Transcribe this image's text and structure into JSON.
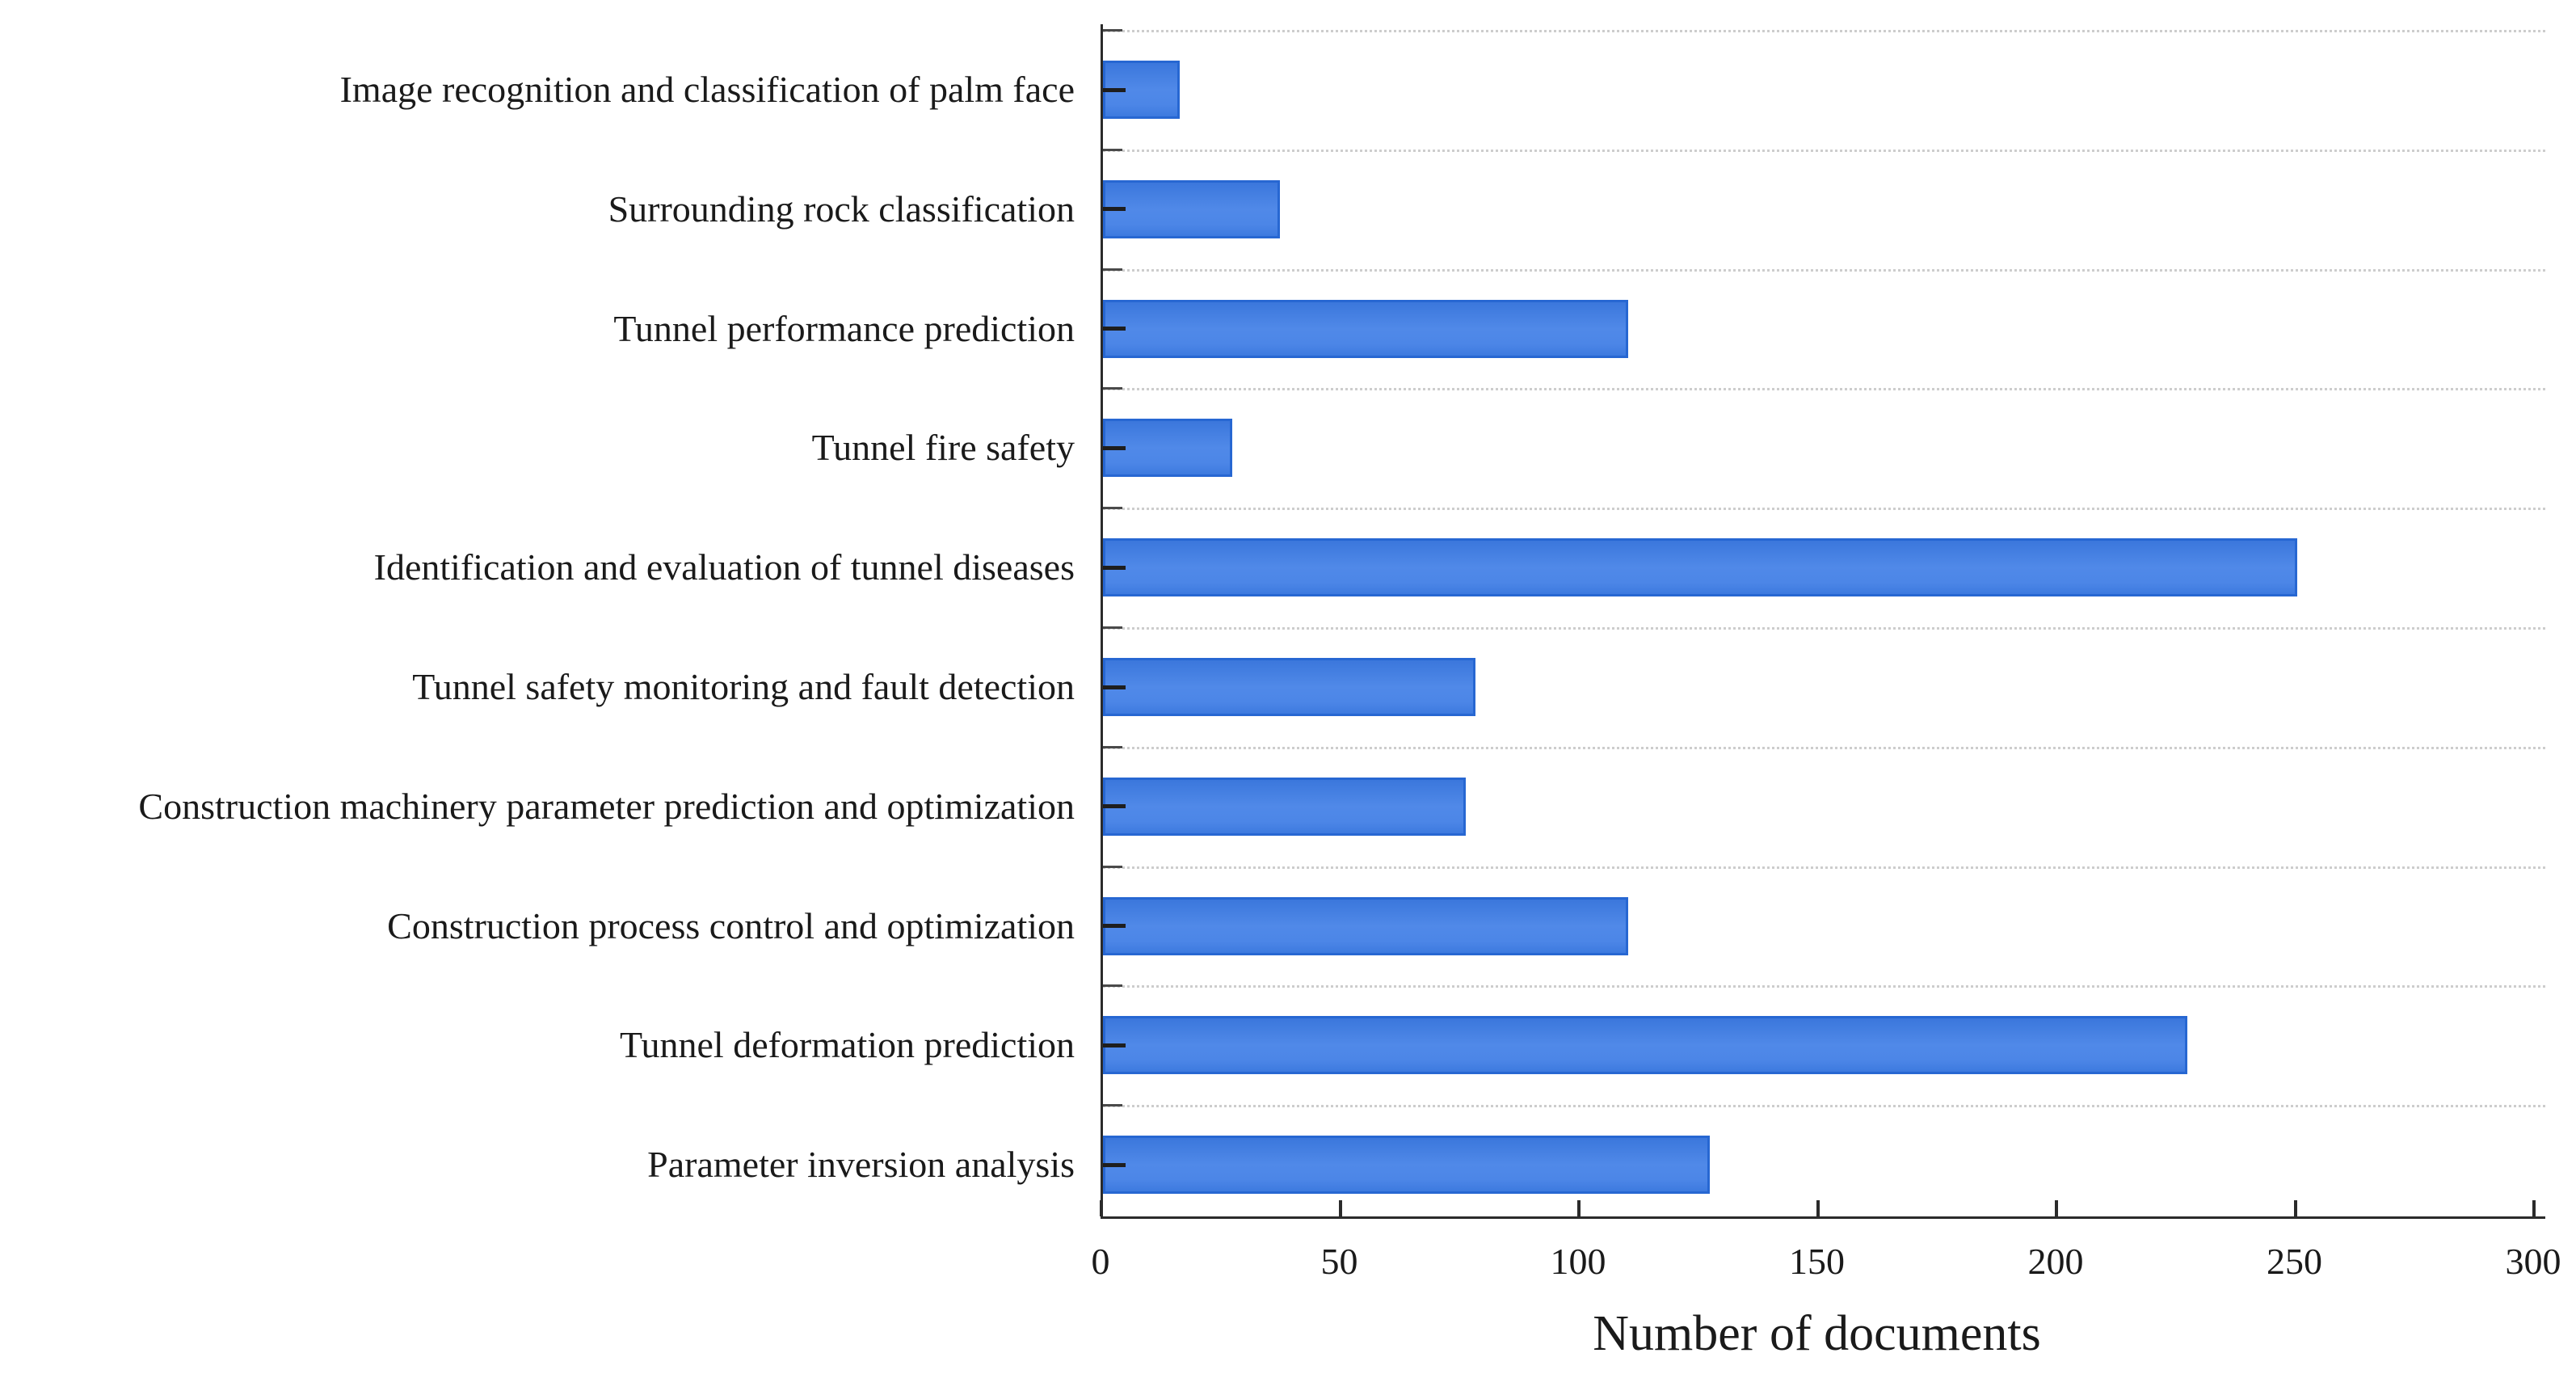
{
  "chart_data": {
    "type": "bar",
    "orientation": "horizontal",
    "title": "",
    "xlabel": "Number of documents",
    "ylabel": "",
    "categories": [
      "Image recognition and classification of palm face",
      "Surrounding rock classification",
      "Tunnel performance prediction",
      "Tunnel fire safety",
      "Identification and evaluation of tunnel diseases",
      "Tunnel safety monitoring and fault detection",
      "Construction machinery parameter prediction and optimization",
      "Construction process control and optimization",
      "Tunnel deformation prediction",
      "Parameter inversion analysis"
    ],
    "values": [
      16,
      37,
      110,
      27,
      250,
      78,
      76,
      110,
      227,
      127
    ],
    "xlim": [
      0,
      300
    ],
    "xticks": [
      0,
      50,
      100,
      150,
      200,
      250,
      300
    ],
    "grid": "dotted horizontal gridlines between category rows",
    "legend": "none",
    "colors": {
      "bar_fill": "#4583e4",
      "bar_fill_light": "#5089e8",
      "bar_border": "#2767d2",
      "axis": "#2b2b2b",
      "gridline": "#cdcdcd",
      "text": "#1a1a1a",
      "background": "#ffffff"
    }
  }
}
